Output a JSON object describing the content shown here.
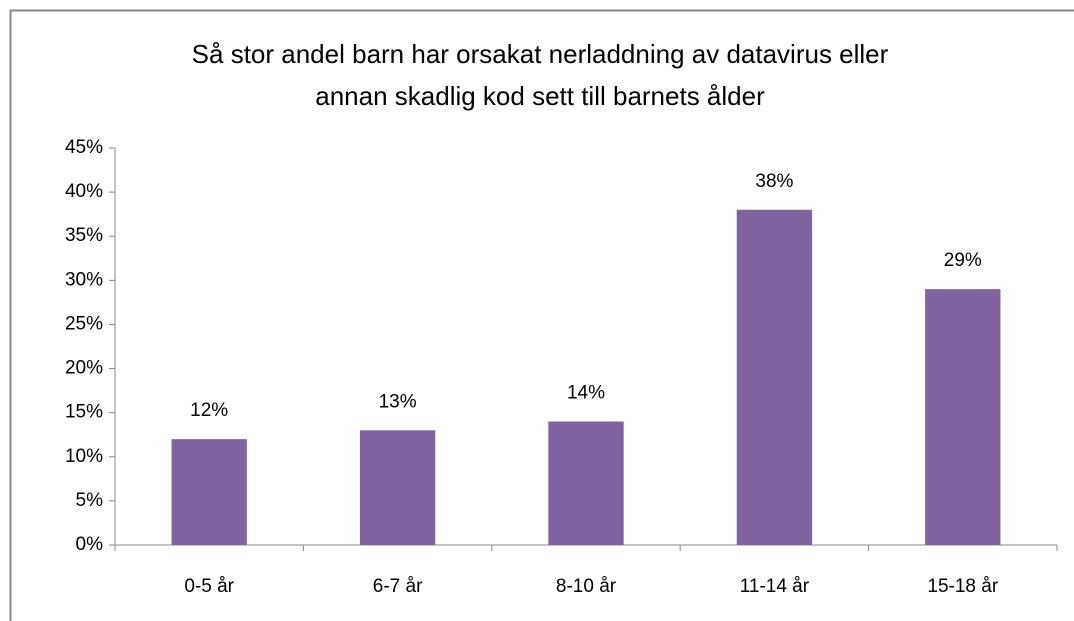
{
  "chart_data": {
    "type": "bar",
    "title": [
      "Så stor andel barn har orsakat nerladdning av datavirus eller",
      "annan skadlig kod sett till barnets ålder"
    ],
    "categories": [
      "0-5 år",
      "6-7 år",
      "8-10 år",
      "11-14 år",
      "15-18 år"
    ],
    "values": [
      12,
      13,
      14,
      38,
      29
    ],
    "value_labels": [
      "12%",
      "13%",
      "14%",
      "38%",
      "29%"
    ],
    "color": "#8064a2",
    "ylim": [
      0,
      45
    ],
    "yticks": [
      {
        "value": 0,
        "label": "0%"
      },
      {
        "value": 5,
        "label": "5%"
      },
      {
        "value": 10,
        "label": "10%"
      },
      {
        "value": 15,
        "label": "15%"
      },
      {
        "value": 20,
        "label": "20%"
      },
      {
        "value": 25,
        "label": "25%"
      },
      {
        "value": 30,
        "label": "30%"
      },
      {
        "value": 35,
        "label": "35%"
      },
      {
        "value": 40,
        "label": "40%"
      },
      {
        "value": 45,
        "label": "45%"
      }
    ],
    "grid": false
  }
}
